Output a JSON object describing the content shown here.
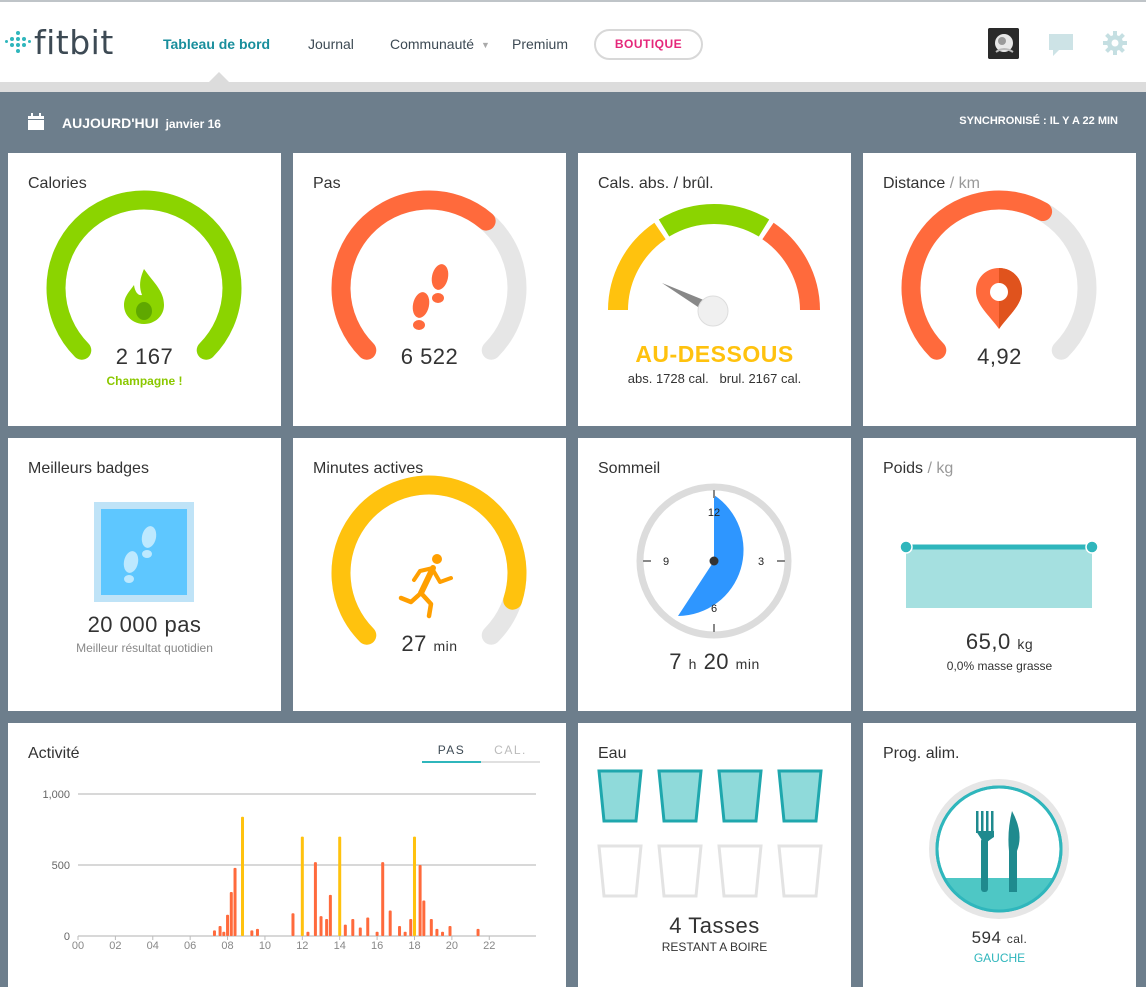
{
  "nav": {
    "logo": "fitbit",
    "items": [
      {
        "label": "Tableau de bord",
        "active": true
      },
      {
        "label": "Journal",
        "active": false
      },
      {
        "label": "Communauté",
        "active": false
      },
      {
        "label": "Premium",
        "active": false
      }
    ],
    "boutique": "BOUTIQUE"
  },
  "datebar": {
    "today": "AUJOURD'HUI",
    "date": "janvier 16",
    "sync": "SYNCHRONISÉ : IL Y A 22 MIN"
  },
  "tiles": {
    "calories": {
      "title": "Calories",
      "value": "2 167",
      "note": "Champagne !",
      "progress": 1.0
    },
    "steps": {
      "title": "Pas",
      "value": "6 522",
      "progress": 0.65
    },
    "calsbalance": {
      "title": "Cals. abs. / brûl.",
      "status": "AU-DESSOUS",
      "detail": "abs. 1728 cal.   brul. 2167 cal."
    },
    "distance": {
      "title": "Distance",
      "unit": "/ km",
      "value": "4,92",
      "progress": 0.61
    },
    "badges": {
      "title": "Meilleurs badges",
      "value": "20 000 pas",
      "note": "Meilleur résultat quotidien"
    },
    "active": {
      "title": "Minutes actives",
      "value": "27",
      "unit": "min",
      "progress": 0.9
    },
    "sleep": {
      "title": "Sommeil",
      "hours": "7",
      "h": "h",
      "minutes": "20",
      "m": "min",
      "dial": [
        "12",
        "3",
        "6",
        "9"
      ]
    },
    "weight": {
      "title": "Poids",
      "unit": "/ kg",
      "value": "65,0",
      "value_unit": "kg",
      "note": "0,0% masse grasse"
    },
    "activity": {
      "title": "Activité",
      "tabs": [
        "PAS",
        "CAL."
      ]
    },
    "water": {
      "title": "Eau",
      "value": "4 Tasses",
      "note": "RESTANT A BOIRE",
      "filled": 4,
      "total": 8
    },
    "food": {
      "title": "Prog. alim.",
      "value": "594",
      "unit": "cal.",
      "note": "GAUCHE"
    }
  },
  "colors": {
    "green": "#8bd400",
    "orange": "#ff6a3c",
    "yellow": "#ffc20e",
    "teal": "#2fb6bc",
    "blue": "#2e96ff",
    "track": "#e6e6e6"
  },
  "chart_data": {
    "type": "bar",
    "title": "",
    "xlabel": "",
    "ylabel": "",
    "ylim": [
      0,
      1000
    ],
    "y_ticks": [
      "0",
      "500",
      "1,000"
    ],
    "x_ticks": [
      "00",
      "02",
      "04",
      "06",
      "08",
      "10",
      "12",
      "14",
      "16",
      "18",
      "20",
      "22"
    ],
    "series": [
      {
        "x": [
          7.3,
          7.6,
          7.8,
          8.0,
          8.2,
          8.4,
          9.3,
          9.6,
          11.5,
          12.3,
          12.7,
          13.0,
          13.3,
          13.5,
          14.3,
          14.7,
          15.1,
          15.5,
          16.0,
          16.3,
          16.7,
          17.2,
          17.5,
          17.8,
          18.3,
          18.5,
          18.9,
          19.2,
          19.5,
          19.9,
          21.4
        ],
        "values": [
          40,
          70,
          30,
          150,
          310,
          480,
          40,
          50,
          160,
          30,
          520,
          140,
          120,
          290,
          80,
          120,
          60,
          130,
          30,
          520,
          180,
          70,
          30,
          120,
          500,
          250,
          120,
          50,
          30,
          70,
          50
        ]
      },
      {
        "x": [
          8.8,
          12.0,
          14.0,
          18.0
        ],
        "values": [
          840,
          700,
          700,
          700
        ]
      }
    ]
  }
}
